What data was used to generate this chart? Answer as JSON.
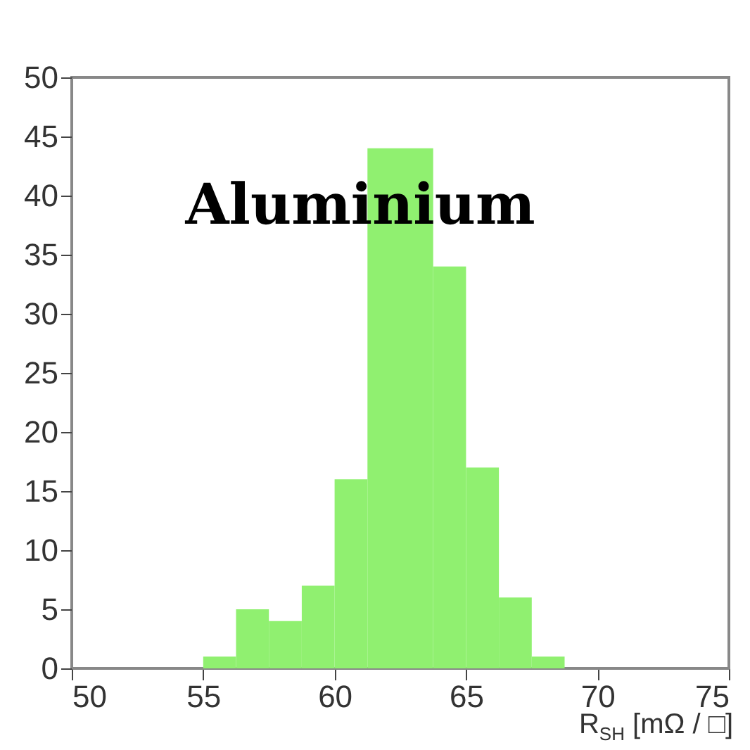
{
  "chart_data": {
    "type": "histogram",
    "xlabel": "R$_{SH}$ [mΩ / □]",
    "annotations": [
      "Aluminium"
    ],
    "bins": [
      55,
      56.25,
      57.5,
      58.75,
      60,
      61.25,
      62.5,
      63.75,
      65,
      66.25,
      67.5,
      68.75
    ],
    "values": [
      1,
      5,
      4,
      7,
      16,
      44,
      44,
      34,
      17,
      6,
      1
    ],
    "color": "#90f070",
    "xlim": [
      50,
      75
    ],
    "xticks": [
      50,
      55,
      60,
      65,
      70,
      75
    ],
    "ylim": [
      0,
      50
    ],
    "yticks": [
      0,
      5,
      10,
      15,
      20,
      25,
      30,
      35,
      40,
      45,
      50
    ],
    "grid": false
  }
}
